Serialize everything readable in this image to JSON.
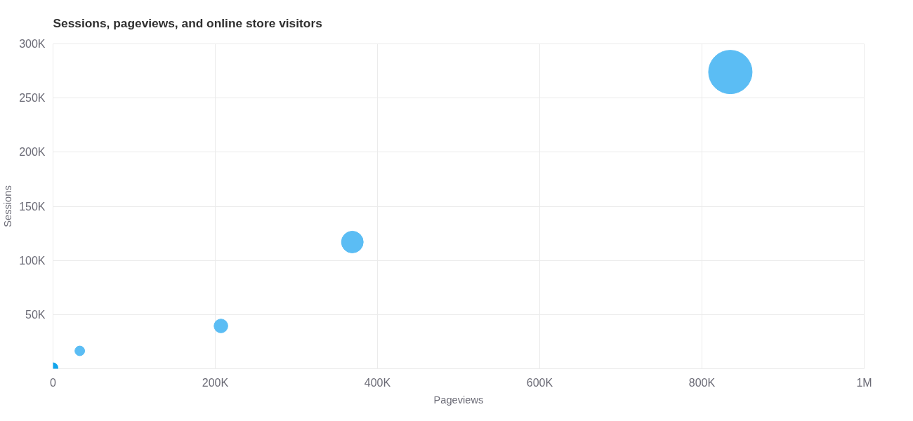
{
  "chart_data": {
    "type": "bubble",
    "title": "Sessions, pageviews, and online store visitors",
    "xlabel": "Pageviews",
    "ylabel": "Sessions",
    "x": [
      0,
      33000,
      207000,
      369000,
      835000
    ],
    "values": [
      1000,
      16500,
      39500,
      117000,
      274000
    ],
    "sizes": [
      0.05,
      0.05,
      0.1,
      0.25,
      1
    ],
    "colors": [
      "#12a5ec",
      "#5bbdf4",
      "#5bbdf4",
      "#5bbdf4",
      "#5bbdf4"
    ],
    "xlim": [
      0,
      1000000
    ],
    "ylim": [
      0,
      300000
    ],
    "xticks": [
      0,
      {
        "value": 200000,
        "label": "200K"
      },
      {
        "value": 400000,
        "label": "400K"
      },
      {
        "value": 600000,
        "label": "600K"
      },
      {
        "value": 800000,
        "label": "800K"
      },
      {
        "value": 1000000,
        "label": "1M"
      }
    ],
    "yticks": [
      {
        "value": 0,
        "label": null
      },
      {
        "value": 50000,
        "label": "50K"
      },
      {
        "value": 100000,
        "label": "100K"
      },
      {
        "value": 150000,
        "label": "150K"
      },
      {
        "value": 200000,
        "label": "200K"
      },
      {
        "value": 250000,
        "label": "250K"
      },
      {
        "value": 300000,
        "label": "300K"
      }
    ],
    "grid": true
  }
}
